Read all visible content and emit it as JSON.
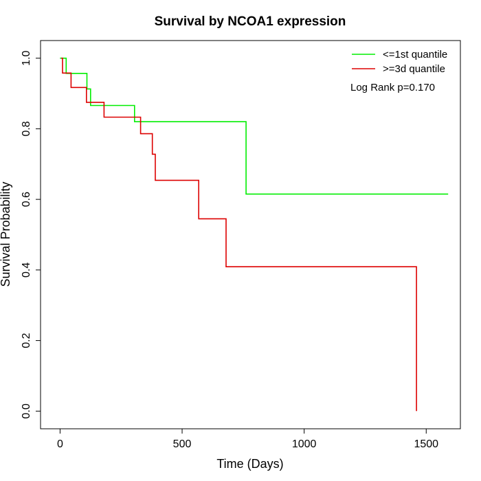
{
  "chart_data": {
    "type": "line",
    "title": "Survival by NCOA1 expression",
    "xlabel": "Time (Days)",
    "ylabel": "Survival Probability",
    "xlim": [
      -80,
      1640
    ],
    "ylim": [
      -0.05,
      1.05
    ],
    "x_ticks": [
      0,
      500,
      1000,
      1500
    ],
    "y_ticks": [
      0.0,
      0.2,
      0.4,
      0.6,
      0.8,
      1.0
    ],
    "x_tick_labels": [
      "0",
      "500",
      "1000",
      "1500"
    ],
    "y_tick_labels": [
      "0.0",
      "0.2",
      "0.4",
      "0.6",
      "0.8",
      "1.0"
    ],
    "grid": false,
    "legend_position": "top-right",
    "annotation": "Log Rank p=0.170",
    "series": [
      {
        "name": "<=1st quantile",
        "color": "#00ee00",
        "points": [
          [
            0,
            1.0
          ],
          [
            25,
            1.0
          ],
          [
            25,
            0.957
          ],
          [
            110,
            0.957
          ],
          [
            110,
            0.913
          ],
          [
            125,
            0.913
          ],
          [
            125,
            0.866
          ],
          [
            305,
            0.866
          ],
          [
            305,
            0.82
          ],
          [
            762,
            0.82
          ],
          [
            762,
            0.615
          ],
          [
            1590,
            0.615
          ]
        ]
      },
      {
        "name": ">=3d quantile",
        "color": "#dd0000",
        "points": [
          [
            5,
            1.0
          ],
          [
            10,
            1.0
          ],
          [
            10,
            0.958
          ],
          [
            45,
            0.958
          ],
          [
            45,
            0.917
          ],
          [
            108,
            0.917
          ],
          [
            108,
            0.875
          ],
          [
            180,
            0.875
          ],
          [
            180,
            0.833
          ],
          [
            330,
            0.833
          ],
          [
            330,
            0.786
          ],
          [
            378,
            0.786
          ],
          [
            378,
            0.728
          ],
          [
            390,
            0.728
          ],
          [
            390,
            0.654
          ],
          [
            568,
            0.654
          ],
          [
            568,
            0.545
          ],
          [
            680,
            0.545
          ],
          [
            680,
            0.409
          ],
          [
            1460,
            0.409
          ],
          [
            1460,
            0.0
          ]
        ]
      }
    ]
  }
}
